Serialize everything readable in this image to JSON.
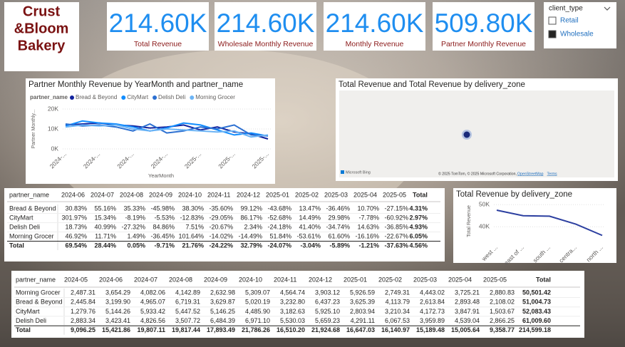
{
  "logo": [
    "Crust",
    "&Bloom",
    "Bakery"
  ],
  "cards": [
    {
      "value": "214.60K",
      "label": "Total Revenue"
    },
    {
      "value": "214.60K",
      "label": "Wholesale Monthly Revenue"
    },
    {
      "value": "214.60K",
      "label": "Monthly Revenue"
    },
    {
      "value": "509.80K",
      "label": "Partner Monthly Revenue"
    }
  ],
  "slicer": {
    "title": "client_type",
    "items": [
      {
        "label": "Retail",
        "checked": false
      },
      {
        "label": "Wholesale",
        "checked": true
      }
    ]
  },
  "chart_data": [
    {
      "type": "line",
      "title": "Partner Monthly Revenue by YearMonth and partner_name",
      "legend_title": "partner_name",
      "x_label": "YearMonth",
      "y_label": "Partner Monthly...",
      "categories": [
        "2024-...",
        null,
        "2024-...",
        null,
        "2024-...",
        null,
        "2024-...",
        null,
        "2025-...",
        null,
        "2025-...",
        null,
        "2025-..."
      ],
      "ylim": [
        0,
        20000
      ],
      "yticks": [
        {
          "value": 0,
          "label": "0K"
        },
        {
          "value": 10000,
          "label": "10K"
        },
        {
          "value": 20000,
          "label": "20K"
        }
      ],
      "series": [
        {
          "name": "Bread & Beyond",
          "color": "#12239e",
          "values": [
            12000,
            12500,
            13000,
            12000,
            11500,
            10500,
            11000,
            12000,
            9500,
            11000,
            8500,
            7500,
            5000
          ]
        },
        {
          "name": "CityMart",
          "color": "#118dff",
          "values": [
            11500,
            14000,
            13000,
            12500,
            11000,
            9000,
            10500,
            13000,
            12000,
            9500,
            7000,
            8000,
            6500
          ]
        },
        {
          "name": "Delish Deli",
          "color": "#2b6fd1",
          "values": [
            12500,
            11500,
            12000,
            11000,
            9000,
            12500,
            8000,
            9000,
            11000,
            10000,
            12000,
            7000,
            6500
          ]
        },
        {
          "name": "Morning Grocer",
          "color": "#6cb4f5",
          "values": [
            11000,
            12000,
            11500,
            12000,
            10000,
            9000,
            10000,
            9500,
            9000,
            8500,
            9000,
            6000,
            7000
          ]
        }
      ]
    },
    {
      "type": "map",
      "title": "Total Revenue and Total Revenue by delivery_zone",
      "attribution": [
        "Microsoft Bing",
        "© 2025 TomTom, © 2025 Microsoft Corporation,",
        "OpenStreetMap",
        "Terms"
      ]
    },
    {
      "type": "line",
      "title": "Total Revenue by delivery_zone",
      "y_label": "Total Revenue",
      "categories": [
        "west ...",
        "east of ...",
        "south ...",
        "centra...",
        "north ..."
      ],
      "ylim": [
        33000,
        52000
      ],
      "yticks": [
        {
          "value": 40000,
          "label": "40K"
        },
        {
          "value": 50000,
          "label": "50K"
        }
      ],
      "series": [
        {
          "name": "Total Revenue",
          "color": "#2c3fa0",
          "values": [
            47500,
            45000,
            44800,
            41200,
            36100
          ]
        }
      ]
    }
  ],
  "tables": [
    {
      "columns": [
        "partner_name",
        "2024-06",
        "2024-07",
        "2024-08",
        "2024-09",
        "2024-10",
        "2024-11",
        "2024-12",
        "2025-01",
        "2025-02",
        "2025-03",
        "2025-04",
        "2025-05",
        "Total"
      ],
      "rows": [
        [
          "Bread & Beyond",
          "30.83%",
          "55.16%",
          "35.33%",
          "-45.98%",
          "38.30%",
          "-35.60%",
          "99.12%",
          "-43.68%",
          "13.47%",
          "-36.46%",
          "10.70%",
          "-27.15%",
          "4.31%"
        ],
        [
          "CityMart",
          "301.97%",
          "15.34%",
          "-8.19%",
          "-5.53%",
          "-12.83%",
          "-29.05%",
          "86.17%",
          "-52.68%",
          "14.49%",
          "29.98%",
          "-7.78%",
          "-60.92%",
          "2.97%"
        ],
        [
          "Delish Deli",
          "18.73%",
          "40.99%",
          "-27.32%",
          "84.86%",
          "7.51%",
          "-20.67%",
          "2.34%",
          "-24.18%",
          "41.40%",
          "-34.74%",
          "14.63%",
          "-36.85%",
          "4.93%"
        ],
        [
          "Morning Grocer",
          "46.92%",
          "11.71%",
          "1.49%",
          "-36.45%",
          "101.64%",
          "-14.02%",
          "-14.49%",
          "51.84%",
          "-53.61%",
          "61.60%",
          "-16.16%",
          "-22.67%",
          "6.05%"
        ],
        [
          "Total",
          "69.54%",
          "28.44%",
          "0.05%",
          "-9.71%",
          "21.76%",
          "-24.22%",
          "32.79%",
          "-24.07%",
          "-3.04%",
          "-5.89%",
          "-1.21%",
          "-37.63%",
          "4.56%"
        ]
      ]
    },
    {
      "columns": [
        "partner_name",
        "2024-05",
        "2024-06",
        "2024-07",
        "2024-08",
        "2024-09",
        "2024-10",
        "2024-11",
        "2024-12",
        "2025-01",
        "2025-02",
        "2025-03",
        "2025-04",
        "2025-05",
        "Total"
      ],
      "rows": [
        [
          "Morning Grocer",
          "2,487.31",
          "3,654.29",
          "4,082.06",
          "4,142.89",
          "2,632.98",
          "5,309.07",
          "4,564.74",
          "3,903.12",
          "5,926.59",
          "2,749.31",
          "4,443.02",
          "3,725.21",
          "2,880.83",
          "50,501.42"
        ],
        [
          "Bread & Beyond",
          "2,445.84",
          "3,199.90",
          "4,965.07",
          "6,719.31",
          "3,629.87",
          "5,020.19",
          "3,232.80",
          "6,437.23",
          "3,625.39",
          "4,113.79",
          "2,613.84",
          "2,893.48",
          "2,108.02",
          "51,004.73"
        ],
        [
          "CityMart",
          "1,279.76",
          "5,144.26",
          "5,933.42",
          "5,447.52",
          "5,146.25",
          "4,485.90",
          "3,182.63",
          "5,925.10",
          "2,803.94",
          "3,210.34",
          "4,172.73",
          "3,847.91",
          "1,503.67",
          "52,083.43"
        ],
        [
          "Delish Deli",
          "2,883.34",
          "3,423.41",
          "4,826.56",
          "3,507.72",
          "6,484.39",
          "6,971.10",
          "5,530.03",
          "5,659.23",
          "4,291.11",
          "6,067.53",
          "3,959.89",
          "4,539.04",
          "2,866.25",
          "61,009.60"
        ],
        [
          "Total",
          "9,096.25",
          "15,421.86",
          "19,807.11",
          "19,817.44",
          "17,893.49",
          "21,786.26",
          "16,510.20",
          "21,924.68",
          "16,647.03",
          "16,140.97",
          "15,189.48",
          "15,005.64",
          "9,358.77",
          "214,599.18"
        ]
      ]
    }
  ]
}
